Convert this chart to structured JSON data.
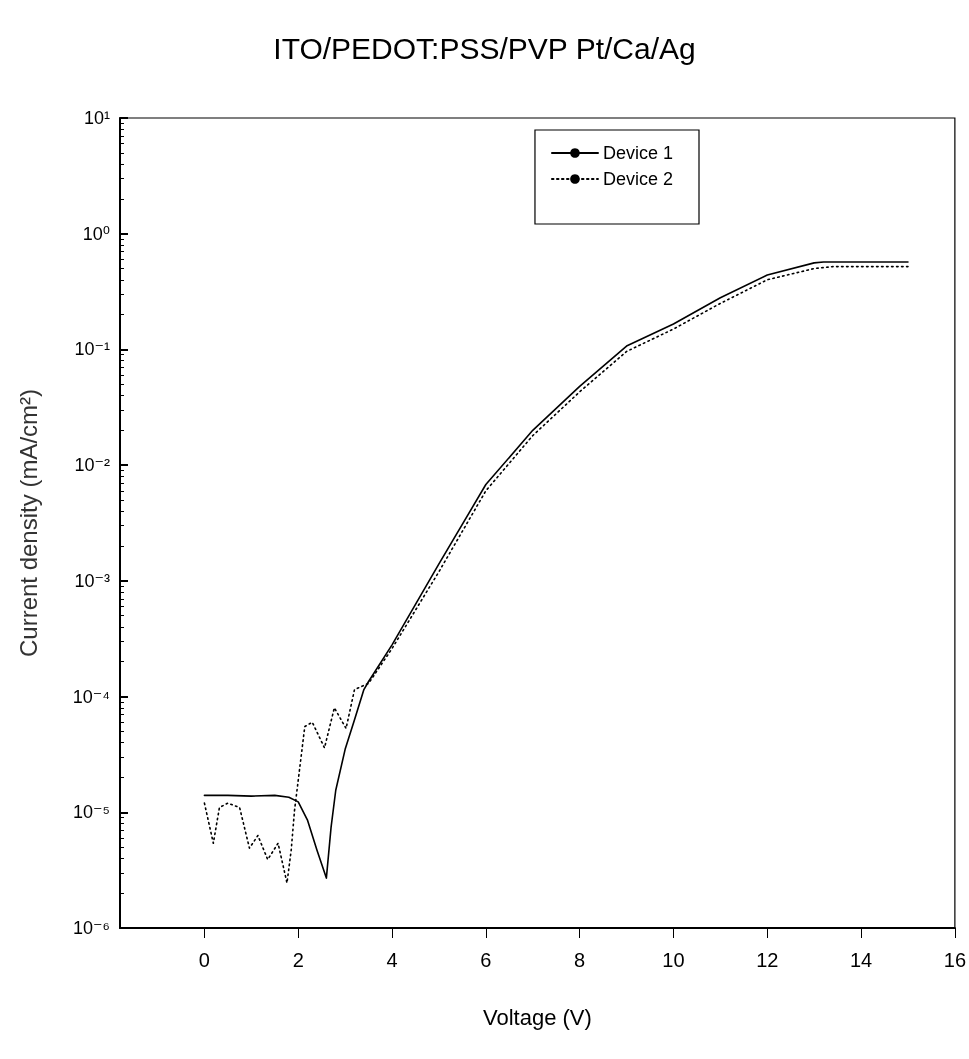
{
  "chart_data": {
    "type": "line",
    "title": "ITO/PEDOT:PSS/PVP Pt/Ca/Ag",
    "xlabel": "Voltage (V)",
    "ylabel": "Current density (mA/cm²)",
    "log": "y",
    "grid": false,
    "legend": "top right",
    "marker": "none",
    "xlim": [
      -1.8,
      16
    ],
    "xticks": [
      0,
      2,
      4,
      6,
      8,
      10,
      12,
      14,
      16
    ],
    "ylim": [
      1e-06,
      10
    ],
    "yticks": [
      {
        "value": 1e-06,
        "label": "10⁻⁶"
      },
      {
        "value": 1e-05,
        "label": "10⁻⁵"
      },
      {
        "value": 0.0001,
        "label": "10⁻⁴"
      },
      {
        "value": 0.001,
        "label": "10⁻³"
      },
      {
        "value": 0.01,
        "label": "10⁻²"
      },
      {
        "value": 0.1,
        "label": "10⁻¹"
      },
      {
        "value": 1,
        "label": "10⁰"
      },
      {
        "value": 10,
        "label": "10¹"
      }
    ],
    "series": [
      {
        "name": "Device 1",
        "color": "#000000",
        "line_style": "solid",
        "x": [
          0,
          0.5,
          1,
          1.5,
          1.8,
          2.0,
          2.2,
          2.4,
          2.6,
          2.7,
          2.8,
          3.0,
          3.2,
          3.4,
          3.5,
          4,
          5,
          6,
          7,
          8,
          9,
          10,
          11,
          12,
          13,
          13.2,
          14,
          15
        ],
        "values": [
          1.4e-05,
          1.4e-05,
          1.38e-05,
          1.4e-05,
          1.35e-05,
          1.23e-05,
          8.5e-06,
          4.7e-06,
          2.7e-06,
          7.4e-06,
          1.55e-05,
          3.5e-05,
          6.3e-05,
          0.000115,
          0.000135,
          0.00028,
          0.0014,
          0.0068,
          0.02,
          0.048,
          0.107,
          0.166,
          0.28,
          0.44,
          0.56,
          0.57,
          0.57,
          0.57
        ]
      },
      {
        "name": "Device 2",
        "color": "#000000",
        "line_style": "dotted",
        "x": [
          0,
          0.19,
          0.32,
          0.5,
          0.75,
          0.96,
          1.14,
          1.35,
          1.57,
          1.76,
          1.85,
          1.92,
          2.14,
          2.3,
          2.56,
          2.77,
          3.02,
          3.2,
          3.5,
          4,
          5,
          6,
          7,
          8,
          9,
          10,
          11,
          12,
          13,
          13.4,
          14,
          15
        ],
        "values": [
          1.2e-05,
          5.4e-06,
          1.1e-05,
          1.2e-05,
          1.1e-05,
          4.9e-06,
          6.3e-06,
          3.9e-06,
          5.4e-06,
          2.45e-06,
          4.7e-06,
          1.03e-05,
          5.5e-05,
          6e-05,
          3.6e-05,
          8e-05,
          5.3e-05,
          0.000115,
          0.00013,
          0.00026,
          0.0012,
          0.006,
          0.018,
          0.043,
          0.096,
          0.15,
          0.25,
          0.4,
          0.5,
          0.52,
          0.52,
          0.52
        ]
      }
    ]
  }
}
